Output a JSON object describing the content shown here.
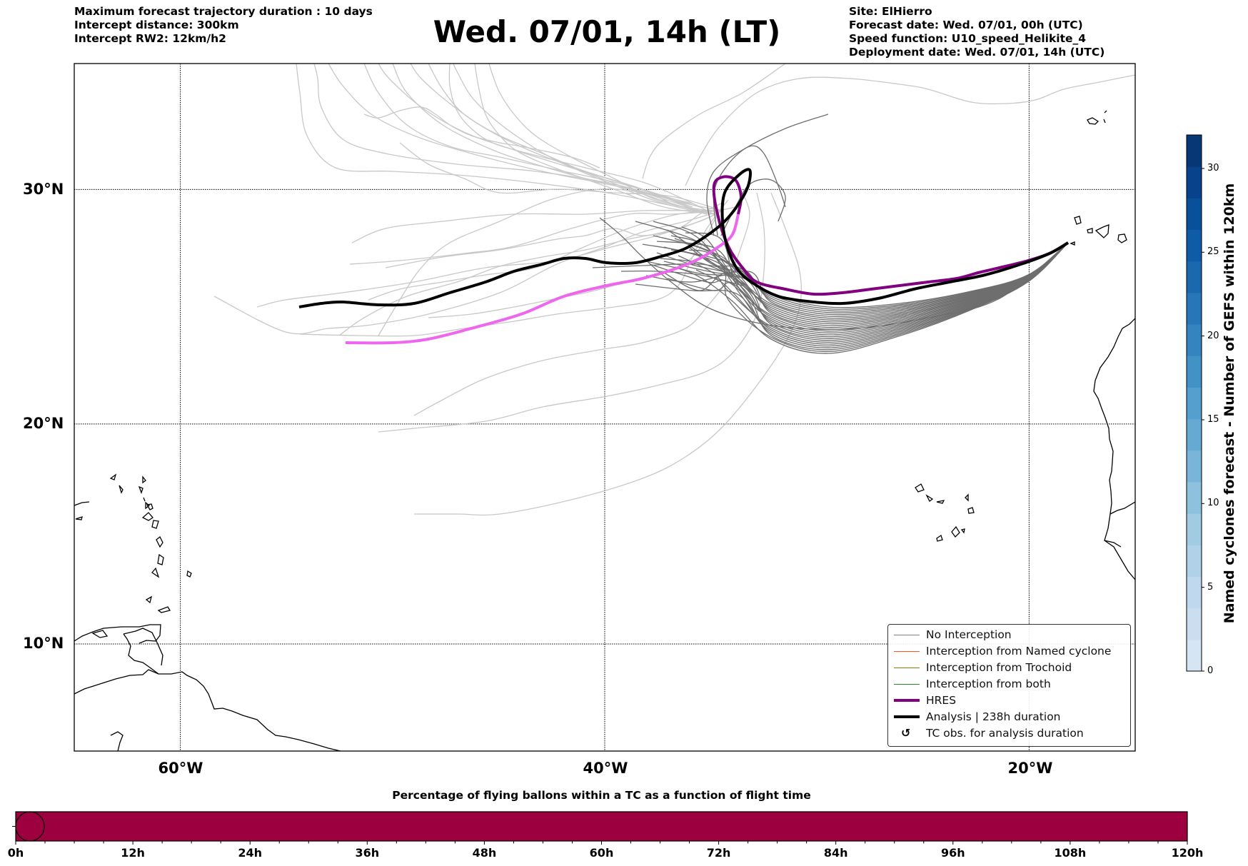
{
  "header": {
    "left": [
      "Maximum forecast trajectory duration : 10 days",
      "Intercept distance: 300km",
      "Intercept RW2: 12km/h2"
    ],
    "title": "Wed. 07/01, 14h (LT)",
    "right": [
      "Site: ElHierro",
      "Forecast date: Wed. 07/01, 00h (UTC)",
      "Speed function: U10_speed_Helikite_4",
      "Deployment date: Wed. 07/01, 14h (UTC)"
    ]
  },
  "map": {
    "extent": {
      "lon_min": -65,
      "lon_max": -15,
      "lat_min": 5,
      "lat_max": 35
    },
    "lat_ticks": [
      {
        "value": 30,
        "label": "30°N"
      },
      {
        "value": 20,
        "label": "20°N"
      },
      {
        "value": 10,
        "label": "10°N"
      }
    ],
    "lon_ticks": [
      {
        "value": -60,
        "label": "60°W"
      },
      {
        "value": -40,
        "label": "40°W"
      },
      {
        "value": -20,
        "label": "20°W"
      }
    ],
    "colors": {
      "no_interception_light": "#c8c8c8",
      "no_interception_dark": "#6e6e6e",
      "hres": "#800080",
      "hres_light": "#ee66ee",
      "analysis": "#000000"
    }
  },
  "legend": {
    "items": [
      {
        "label": "No Interception",
        "color": "#808080",
        "width": 1.2,
        "type": "line"
      },
      {
        "label": "Interception from Named cyclone",
        "color": "#ff5522",
        "width": 1.2,
        "type": "line"
      },
      {
        "label": "Interception from Trochoid",
        "color": "#808000",
        "width": 1.2,
        "type": "line"
      },
      {
        "label": "Interception from both",
        "color": "#228B22",
        "width": 1.2,
        "type": "line"
      },
      {
        "label": "HRES",
        "color": "#800080",
        "width": 4,
        "type": "line"
      },
      {
        "label": "Analysis | 238h duration",
        "color": "#000000",
        "width": 4,
        "type": "line"
      },
      {
        "label": "TC obs. for analysis duration",
        "color": "#000000",
        "type": "symbol",
        "symbol": "↺"
      }
    ]
  },
  "colorbar": {
    "label": "Named cyclones forecast - Number of GEFS within 120km",
    "min": 0,
    "max": 32,
    "ticks": [
      "0",
      "5",
      "10",
      "15",
      "20",
      "25",
      "30"
    ],
    "tick_values": [
      0,
      5,
      10,
      15,
      20,
      25,
      30
    ],
    "colors": [
      "#d6e5f4",
      "#cbdef0",
      "#bfd8ed",
      "#b0d2e8",
      "#a1cbe2",
      "#8dc1dd",
      "#79b5d9",
      "#66aad4",
      "#549fcd",
      "#4392c6",
      "#3484bf",
      "#2676b8",
      "#1a69af",
      "#0e5ca5",
      "#08509a",
      "#08428a",
      "#083776"
    ]
  },
  "flight_bar": {
    "title": "Percentage of flying ballons within a TC as a function of flight time",
    "color": "#9c003e",
    "percent_within_tc": 100,
    "x_min_h": 0,
    "x_max_h": 120,
    "tick_labels": [
      "0h",
      "12h",
      "24h",
      "36h",
      "48h",
      "60h",
      "72h",
      "84h",
      "96h",
      "108h",
      "120h"
    ],
    "tick_values": [
      0,
      12,
      24,
      36,
      48,
      60,
      72,
      84,
      96,
      108,
      120
    ]
  }
}
